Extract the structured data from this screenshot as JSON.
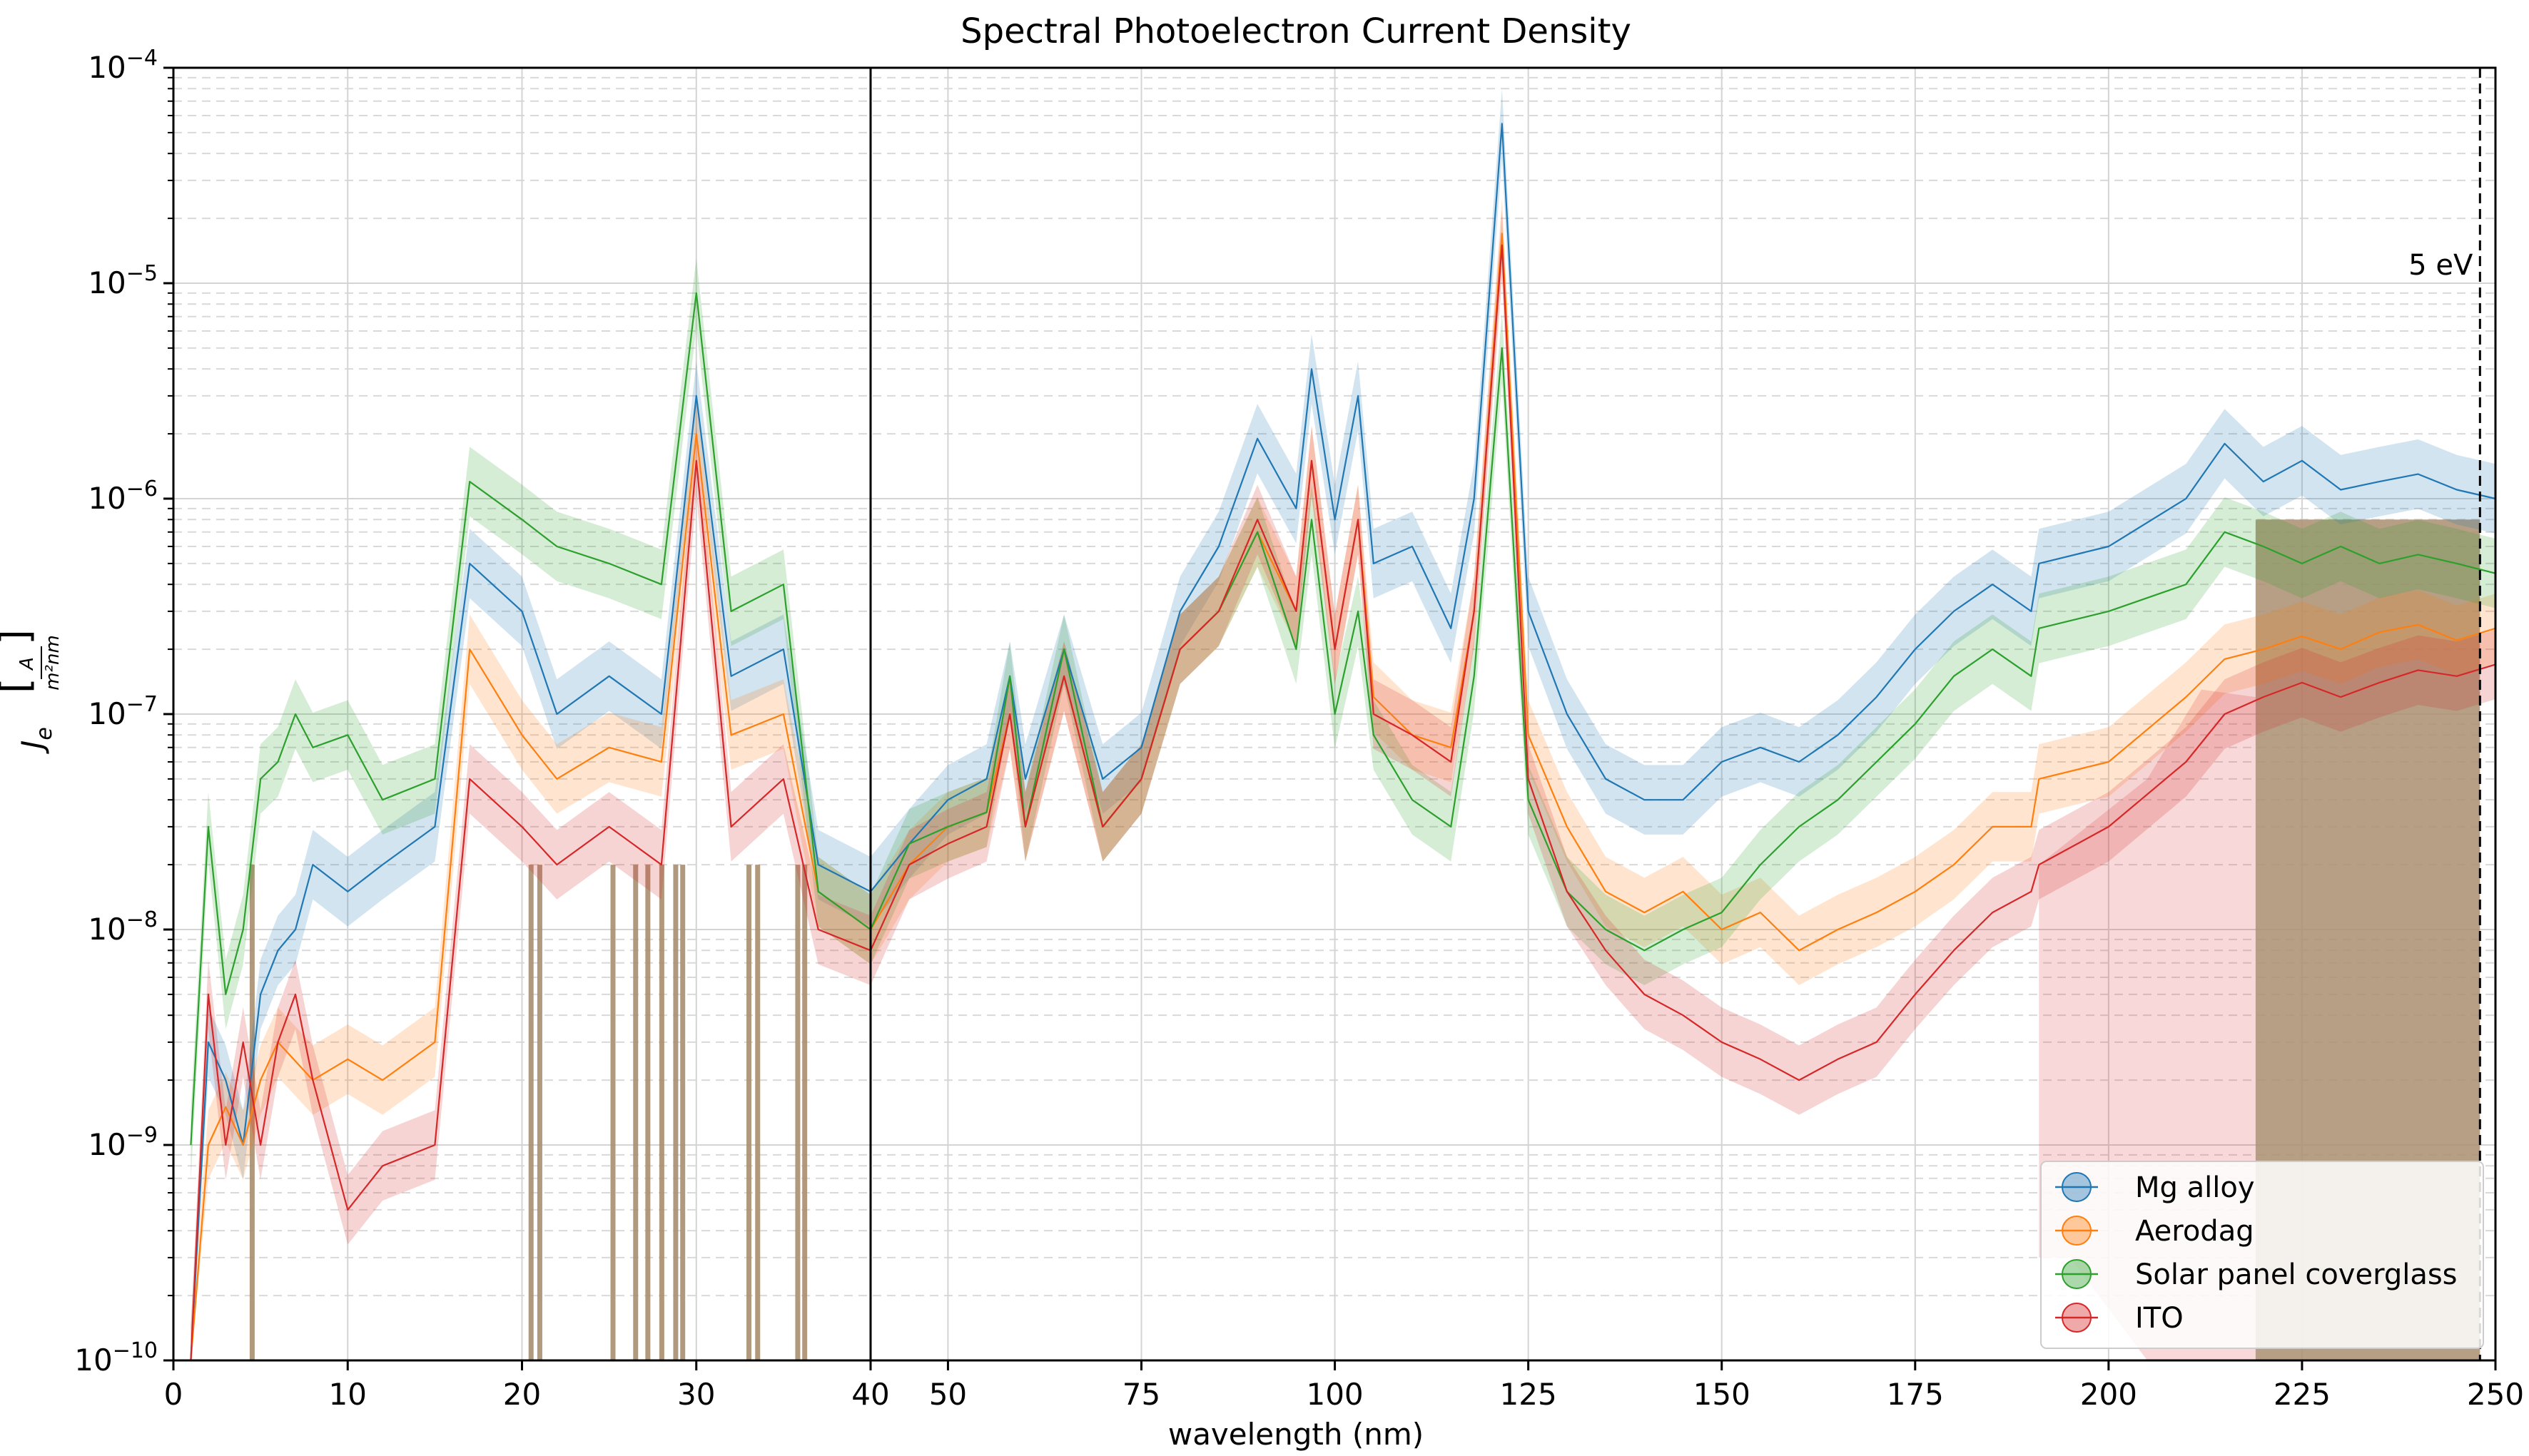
{
  "chart_data": {
    "type": "line",
    "title": "Spectral Photoelectron Current Density",
    "xlabel": "wavelength (nm)",
    "ylabel": "J_e [A/(m²nm)]",
    "ylabel_main": "J",
    "ylabel_sub": "e",
    "ylabel_unit_num": "A",
    "ylabel_unit_den": "m²nm",
    "yscale": "log",
    "ylim": [
      1e-10,
      0.0001
    ],
    "y_tick_labels": [
      {
        "value": 1e-10,
        "base": "10",
        "exp": "−10"
      },
      {
        "value": 1e-09,
        "base": "10",
        "exp": "−9"
      },
      {
        "value": 1e-08,
        "base": "10",
        "exp": "−8"
      },
      {
        "value": 1e-07,
        "base": "10",
        "exp": "−7"
      },
      {
        "value": 1e-06,
        "base": "10",
        "exp": "−6"
      },
      {
        "value": 1e-05,
        "base": "10",
        "exp": "−5"
      },
      {
        "value": 0.0001,
        "base": "10",
        "exp": "−4"
      }
    ],
    "x_panels": [
      {
        "xlim": [
          0,
          40
        ],
        "ticks": [
          0,
          10,
          20,
          30,
          40
        ],
        "tick_labels": [
          "0",
          "10",
          "20",
          "30",
          "40"
        ]
      },
      {
        "xlim": [
          40,
          250
        ],
        "ticks": [
          50,
          75,
          100,
          125,
          150,
          175,
          200,
          225,
          250
        ],
        "tick_labels": [
          "50",
          "75",
          "100",
          "125",
          "150",
          "175",
          "200",
          "225",
          "250"
        ]
      }
    ],
    "grid": true,
    "legend_position": "bottom-right",
    "annotation": {
      "text": "5 eV",
      "x": 248
    },
    "series": [
      {
        "name": "Mg alloy",
        "color": "#1f77b4",
        "points": [
          [
            1,
            1e-10
          ],
          [
            2,
            3e-09
          ],
          [
            3,
            2e-09
          ],
          [
            4,
            1e-09
          ],
          [
            5,
            5e-09
          ],
          [
            6,
            8e-09
          ],
          [
            7,
            1e-08
          ],
          [
            8,
            2e-08
          ],
          [
            10,
            1.5e-08
          ],
          [
            12,
            2e-08
          ],
          [
            15,
            3e-08
          ],
          [
            17,
            5e-07
          ],
          [
            20,
            3e-07
          ],
          [
            22,
            1e-07
          ],
          [
            25,
            1.5e-07
          ],
          [
            28,
            1e-07
          ],
          [
            30,
            3e-06
          ],
          [
            32,
            1.5e-07
          ],
          [
            35,
            2e-07
          ],
          [
            37,
            2e-08
          ],
          [
            40,
            1.5e-08
          ],
          [
            45,
            2.5e-08
          ],
          [
            50,
            4e-08
          ],
          [
            55,
            5e-08
          ],
          [
            58,
            1.5e-07
          ],
          [
            60,
            5e-08
          ],
          [
            65,
            2e-07
          ],
          [
            70,
            5e-08
          ],
          [
            75,
            7e-08
          ],
          [
            80,
            3e-07
          ],
          [
            85,
            6e-07
          ],
          [
            90,
            1.9e-06
          ],
          [
            95,
            9e-07
          ],
          [
            97,
            4e-06
          ],
          [
            100,
            8e-07
          ],
          [
            103,
            3e-06
          ],
          [
            105,
            5e-07
          ],
          [
            110,
            6e-07
          ],
          [
            115,
            2.5e-07
          ],
          [
            118,
            1e-06
          ],
          [
            121.6,
            5.5e-05
          ],
          [
            125,
            3e-07
          ],
          [
            130,
            1e-07
          ],
          [
            135,
            5e-08
          ],
          [
            140,
            4e-08
          ],
          [
            145,
            4e-08
          ],
          [
            150,
            6e-08
          ],
          [
            155,
            7e-08
          ],
          [
            160,
            6e-08
          ],
          [
            165,
            8e-08
          ],
          [
            170,
            1.2e-07
          ],
          [
            175,
            2e-07
          ],
          [
            180,
            3e-07
          ],
          [
            185,
            4e-07
          ],
          [
            190,
            3e-07
          ],
          [
            191,
            5e-07
          ],
          [
            200,
            6e-07
          ],
          [
            210,
            1e-06
          ],
          [
            215,
            1.8e-06
          ],
          [
            220,
            1.2e-06
          ],
          [
            225,
            1.5e-06
          ],
          [
            230,
            1.1e-06
          ],
          [
            235,
            1.2e-06
          ],
          [
            240,
            1.3e-06
          ],
          [
            245,
            1.1e-06
          ],
          [
            250,
            1e-06
          ]
        ]
      },
      {
        "name": "Aerodag",
        "color": "#ff7f0e",
        "points": [
          [
            1,
            1e-10
          ],
          [
            2,
            1e-09
          ],
          [
            3,
            1.5e-09
          ],
          [
            4,
            1e-09
          ],
          [
            5,
            2e-09
          ],
          [
            6,
            3e-09
          ],
          [
            8,
            2e-09
          ],
          [
            10,
            2.5e-09
          ],
          [
            12,
            2e-09
          ],
          [
            15,
            3e-09
          ],
          [
            17,
            2e-07
          ],
          [
            20,
            8e-08
          ],
          [
            22,
            5e-08
          ],
          [
            25,
            7e-08
          ],
          [
            28,
            6e-08
          ],
          [
            30,
            2e-06
          ],
          [
            32,
            8e-08
          ],
          [
            35,
            1e-07
          ],
          [
            37,
            1.5e-08
          ],
          [
            40,
            1e-08
          ],
          [
            45,
            2e-08
          ],
          [
            50,
            3e-08
          ],
          [
            55,
            3.5e-08
          ],
          [
            58,
            1e-07
          ],
          [
            60,
            3e-08
          ],
          [
            65,
            1.5e-07
          ],
          [
            70,
            3e-08
          ],
          [
            75,
            5e-08
          ],
          [
            80,
            2e-07
          ],
          [
            85,
            3e-07
          ],
          [
            90,
            7e-07
          ],
          [
            95,
            3e-07
          ],
          [
            97,
            1.5e-06
          ],
          [
            100,
            2e-07
          ],
          [
            103,
            8e-07
          ],
          [
            105,
            1.2e-07
          ],
          [
            110,
            8e-08
          ],
          [
            115,
            7e-08
          ],
          [
            118,
            3e-07
          ],
          [
            121.6,
            1.7e-05
          ],
          [
            125,
            8e-08
          ],
          [
            130,
            3e-08
          ],
          [
            135,
            1.5e-08
          ],
          [
            140,
            1.2e-08
          ],
          [
            145,
            1.5e-08
          ],
          [
            150,
            1e-08
          ],
          [
            155,
            1.2e-08
          ],
          [
            160,
            8e-09
          ],
          [
            165,
            1e-08
          ],
          [
            170,
            1.2e-08
          ],
          [
            175,
            1.5e-08
          ],
          [
            180,
            2e-08
          ],
          [
            185,
            3e-08
          ],
          [
            190,
            3e-08
          ],
          [
            191,
            5e-08
          ],
          [
            200,
            6e-08
          ],
          [
            210,
            1.2e-07
          ],
          [
            215,
            1.8e-07
          ],
          [
            220,
            2e-07
          ],
          [
            225,
            2.3e-07
          ],
          [
            230,
            2e-07
          ],
          [
            235,
            2.4e-07
          ],
          [
            240,
            2.6e-07
          ],
          [
            245,
            2.2e-07
          ],
          [
            250,
            2.5e-07
          ]
        ]
      },
      {
        "name": "Solar panel coverglass",
        "color": "#2ca02c",
        "points": [
          [
            1,
            1e-09
          ],
          [
            2,
            3e-08
          ],
          [
            3,
            5e-09
          ],
          [
            4,
            1e-08
          ],
          [
            5,
            5e-08
          ],
          [
            6,
            6e-08
          ],
          [
            7,
            1e-07
          ],
          [
            8,
            7e-08
          ],
          [
            10,
            8e-08
          ],
          [
            12,
            4e-08
          ],
          [
            15,
            5e-08
          ],
          [
            17,
            1.2e-06
          ],
          [
            20,
            8e-07
          ],
          [
            22,
            6e-07
          ],
          [
            25,
            5e-07
          ],
          [
            28,
            4e-07
          ],
          [
            30,
            9e-06
          ],
          [
            32,
            3e-07
          ],
          [
            35,
            4e-07
          ],
          [
            37,
            1.5e-08
          ],
          [
            40,
            1e-08
          ],
          [
            45,
            2.5e-08
          ],
          [
            50,
            3e-08
          ],
          [
            55,
            3.5e-08
          ],
          [
            58,
            1.5e-07
          ],
          [
            60,
            3e-08
          ],
          [
            65,
            2e-07
          ],
          [
            70,
            3e-08
          ],
          [
            75,
            5e-08
          ],
          [
            80,
            2e-07
          ],
          [
            85,
            3e-07
          ],
          [
            90,
            7e-07
          ],
          [
            95,
            2e-07
          ],
          [
            97,
            8e-07
          ],
          [
            100,
            1e-07
          ],
          [
            103,
            3e-07
          ],
          [
            105,
            8e-08
          ],
          [
            110,
            4e-08
          ],
          [
            115,
            3e-08
          ],
          [
            118,
            1.5e-07
          ],
          [
            121.6,
            5e-06
          ],
          [
            125,
            4e-08
          ],
          [
            130,
            1.5e-08
          ],
          [
            135,
            1e-08
          ],
          [
            140,
            8e-09
          ],
          [
            145,
            1e-08
          ],
          [
            150,
            1.2e-08
          ],
          [
            155,
            2e-08
          ],
          [
            160,
            3e-08
          ],
          [
            165,
            4e-08
          ],
          [
            170,
            6e-08
          ],
          [
            175,
            9e-08
          ],
          [
            180,
            1.5e-07
          ],
          [
            185,
            2e-07
          ],
          [
            190,
            1.5e-07
          ],
          [
            191,
            2.5e-07
          ],
          [
            200,
            3e-07
          ],
          [
            210,
            4e-07
          ],
          [
            215,
            7e-07
          ],
          [
            220,
            6e-07
          ],
          [
            225,
            5e-07
          ],
          [
            230,
            6e-07
          ],
          [
            235,
            5e-07
          ],
          [
            240,
            5.5e-07
          ],
          [
            245,
            5e-07
          ],
          [
            250,
            4.5e-07
          ]
        ]
      },
      {
        "name": "ITO",
        "color": "#d62728",
        "points": [
          [
            1,
            1e-10
          ],
          [
            2,
            5e-09
          ],
          [
            3,
            1e-09
          ],
          [
            4,
            3e-09
          ],
          [
            5,
            1e-09
          ],
          [
            6,
            3e-09
          ],
          [
            7,
            5e-09
          ],
          [
            8,
            2e-09
          ],
          [
            10,
            5e-10
          ],
          [
            12,
            8e-10
          ],
          [
            15,
            1e-09
          ],
          [
            17,
            5e-08
          ],
          [
            20,
            3e-08
          ],
          [
            22,
            2e-08
          ],
          [
            25,
            3e-08
          ],
          [
            28,
            2e-08
          ],
          [
            30,
            1.5e-06
          ],
          [
            32,
            3e-08
          ],
          [
            35,
            5e-08
          ],
          [
            37,
            1e-08
          ],
          [
            40,
            8e-09
          ],
          [
            45,
            2e-08
          ],
          [
            50,
            2.5e-08
          ],
          [
            55,
            3e-08
          ],
          [
            58,
            1e-07
          ],
          [
            60,
            3e-08
          ],
          [
            65,
            1.5e-07
          ],
          [
            70,
            3e-08
          ],
          [
            75,
            5e-08
          ],
          [
            80,
            2e-07
          ],
          [
            85,
            3e-07
          ],
          [
            90,
            8e-07
          ],
          [
            95,
            3e-07
          ],
          [
            97,
            1.5e-06
          ],
          [
            100,
            2e-07
          ],
          [
            103,
            8e-07
          ],
          [
            105,
            1e-07
          ],
          [
            110,
            8e-08
          ],
          [
            115,
            6e-08
          ],
          [
            118,
            3e-07
          ],
          [
            121.6,
            1.5e-05
          ],
          [
            125,
            5e-08
          ],
          [
            130,
            1.5e-08
          ],
          [
            135,
            8e-09
          ],
          [
            140,
            5e-09
          ],
          [
            145,
            4e-09
          ],
          [
            150,
            3e-09
          ],
          [
            155,
            2.5e-09
          ],
          [
            160,
            2e-09
          ],
          [
            165,
            2.5e-09
          ],
          [
            170,
            3e-09
          ],
          [
            175,
            5e-09
          ],
          [
            180,
            8e-09
          ],
          [
            185,
            1.2e-08
          ],
          [
            190,
            1.5e-08
          ],
          [
            191,
            2e-08
          ],
          [
            200,
            3e-08
          ],
          [
            210,
            6e-08
          ],
          [
            215,
            1e-07
          ],
          [
            220,
            1.2e-07
          ],
          [
            225,
            1.4e-07
          ],
          [
            230,
            1.2e-07
          ],
          [
            235,
            1.4e-07
          ],
          [
            240,
            1.6e-07
          ],
          [
            245,
            1.5e-07
          ],
          [
            250,
            1.7e-07
          ]
        ]
      }
    ]
  }
}
